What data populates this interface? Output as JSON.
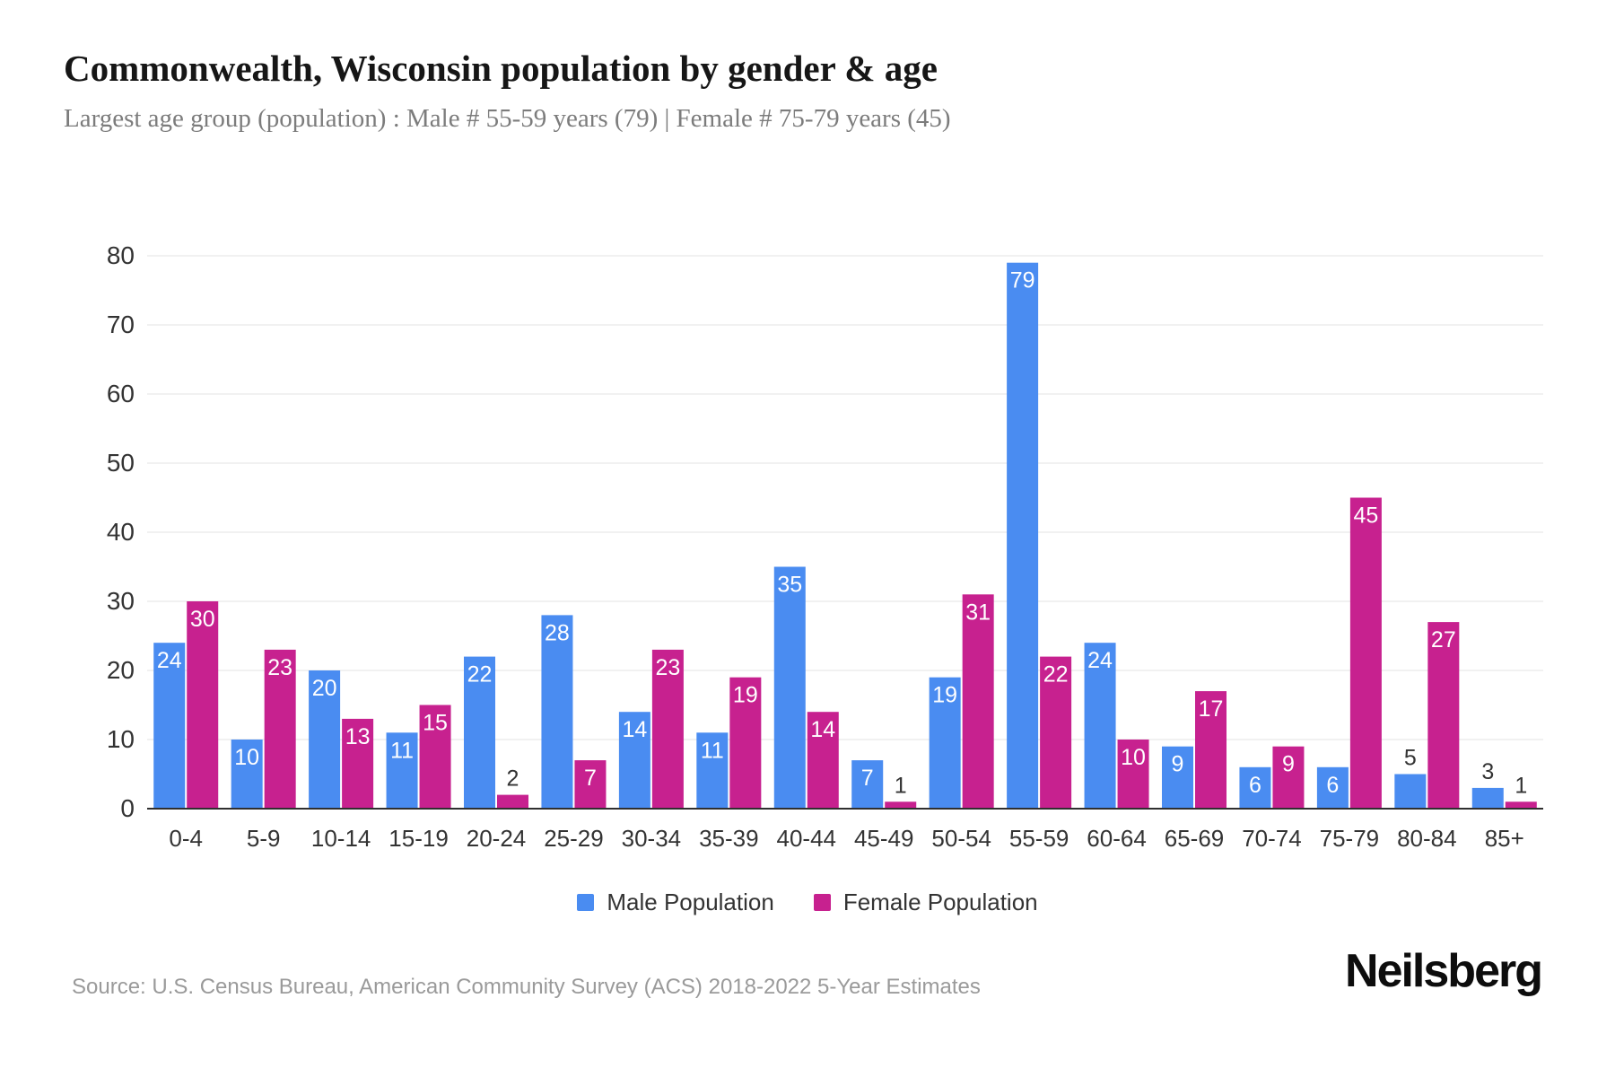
{
  "header": {
    "title": "Commonwealth, Wisconsin population by gender & age",
    "subtitle": "Largest age group (population) : Male # 55-59 years (79) | Female # 75-79 years (45)"
  },
  "chart_data": {
    "type": "bar",
    "title": "Commonwealth, Wisconsin population by gender & age",
    "xlabel": "",
    "ylabel": "",
    "categories": [
      "0-4",
      "5-9",
      "10-14",
      "15-19",
      "20-24",
      "25-29",
      "30-34",
      "35-39",
      "40-44",
      "45-49",
      "50-54",
      "55-59",
      "60-64",
      "65-69",
      "70-74",
      "75-79",
      "80-84",
      "85+"
    ],
    "series": [
      {
        "name": "Male Population",
        "color": "#4a8cf1",
        "values": [
          24,
          10,
          20,
          11,
          22,
          28,
          14,
          11,
          35,
          7,
          19,
          79,
          24,
          9,
          6,
          6,
          5,
          3
        ]
      },
      {
        "name": "Female Population",
        "color": "#c7218f",
        "values": [
          30,
          23,
          13,
          15,
          2,
          7,
          23,
          19,
          14,
          1,
          31,
          22,
          10,
          17,
          9,
          45,
          27,
          1
        ]
      }
    ],
    "ylim": [
      0,
      80
    ],
    "ytick_step": 10,
    "grid": true,
    "legend_position": "bottom",
    "bar_label_inside_threshold": 6
  },
  "footer": {
    "source": "Source: U.S. Census Bureau, American Community Survey (ACS) 2018-2022 5-Year Estimates",
    "brand": "Neilsberg"
  },
  "colors": {
    "grid": "#f1f1f1",
    "axis": "#2f2f2f",
    "tick_text": "#333333",
    "bar_label_inside": "#ffffff",
    "bar_label_outside": "#333333"
  }
}
